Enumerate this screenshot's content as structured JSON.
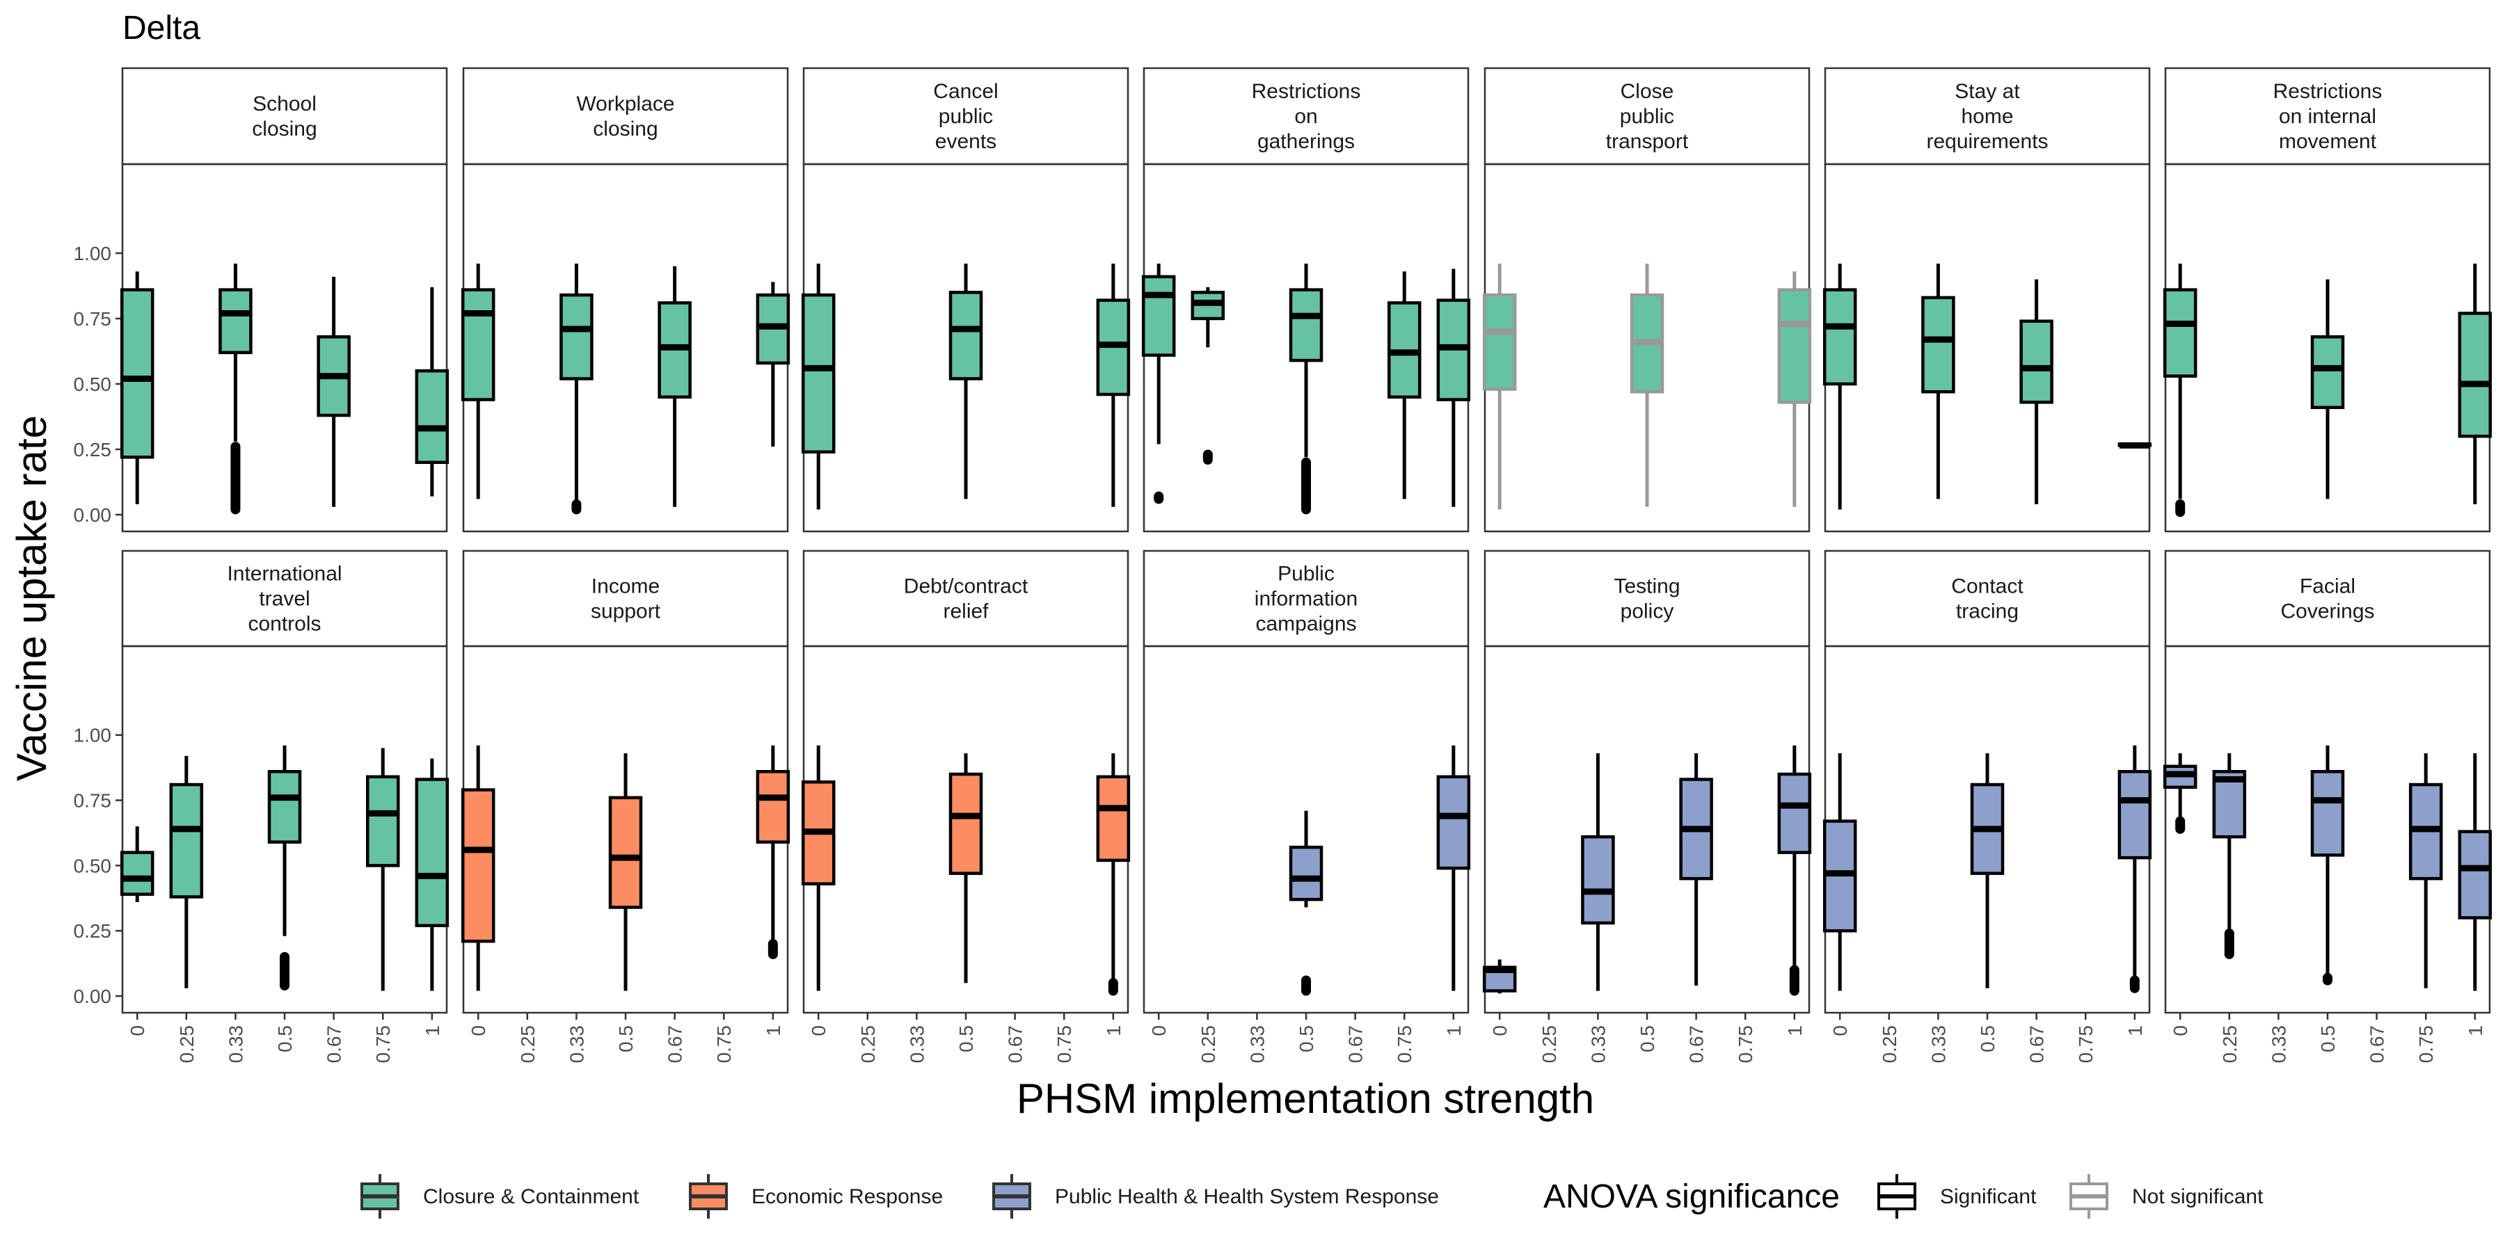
{
  "title": "Delta",
  "chart_data": {
    "type": "box",
    "xlabel": "PHSM implementation strength",
    "ylabel": "Vaccine uptake rate",
    "x_categories": [
      "0",
      "0.25",
      "0.33",
      "0.5",
      "0.67",
      "0.75",
      "1"
    ],
    "y_ticks": [
      "0.00",
      "0.25",
      "0.50",
      "0.75",
      "1.00"
    ],
    "ylim": [
      0,
      1
    ],
    "layout": {
      "rows": 2,
      "cols": 7
    },
    "groups": [
      {
        "key": "cc",
        "name": "Closure & Containment",
        "color": "#66c2a5"
      },
      {
        "key": "er",
        "name": "Economic Response",
        "color": "#fc8d62"
      },
      {
        "key": "ph",
        "name": "Public Health & Health System Response",
        "color": "#8da0cb"
      }
    ],
    "significance": {
      "title": "ANOVA significance",
      "levels": [
        {
          "key": "sig",
          "name": "Significant",
          "color": "#000000"
        },
        {
          "key": "ns",
          "name": "Not significant",
          "color": "#999999"
        }
      ]
    },
    "panels": [
      {
        "title": [
          "School",
          "closing"
        ],
        "group": "cc",
        "significance": "sig",
        "boxes": [
          {
            "x": "0",
            "min": 0.04,
            "q1": 0.22,
            "median": 0.52,
            "q3": 0.86,
            "max": 0.93
          },
          {
            "x": "0.33",
            "min": 0.28,
            "q1": 0.62,
            "median": 0.77,
            "q3": 0.86,
            "max": 0.96,
            "outliers_range": [
              0.02,
              0.26
            ]
          },
          {
            "x": "0.67",
            "min": 0.03,
            "q1": 0.38,
            "median": 0.53,
            "q3": 0.68,
            "max": 0.91
          },
          {
            "x": "1",
            "min": 0.07,
            "q1": 0.2,
            "median": 0.33,
            "q3": 0.55,
            "max": 0.87
          }
        ]
      },
      {
        "title": [
          "Workplace",
          "closing"
        ],
        "group": "cc",
        "significance": "sig",
        "boxes": [
          {
            "x": "0",
            "min": 0.06,
            "q1": 0.44,
            "median": 0.77,
            "q3": 0.86,
            "max": 0.96
          },
          {
            "x": "0.33",
            "min": 0.05,
            "q1": 0.52,
            "median": 0.71,
            "q3": 0.84,
            "max": 0.96,
            "outliers_range": [
              0.02,
              0.04
            ]
          },
          {
            "x": "0.67",
            "min": 0.03,
            "q1": 0.45,
            "median": 0.64,
            "q3": 0.81,
            "max": 0.95
          },
          {
            "x": "1",
            "min": 0.26,
            "q1": 0.58,
            "median": 0.72,
            "q3": 0.84,
            "max": 0.89
          }
        ]
      },
      {
        "title": [
          "Cancel",
          "public",
          "events"
        ],
        "group": "cc",
        "significance": "sig",
        "boxes": [
          {
            "x": "0",
            "min": 0.02,
            "q1": 0.24,
            "median": 0.56,
            "q3": 0.84,
            "max": 0.96
          },
          {
            "x": "0.5",
            "min": 0.06,
            "q1": 0.52,
            "median": 0.71,
            "q3": 0.85,
            "max": 0.96
          },
          {
            "x": "1",
            "min": 0.03,
            "q1": 0.46,
            "median": 0.65,
            "q3": 0.82,
            "max": 0.96
          }
        ]
      },
      {
        "title": [
          "Restrictions",
          "on",
          "gatherings"
        ],
        "group": "cc",
        "significance": "sig",
        "boxes": [
          {
            "x": "0",
            "min": 0.27,
            "q1": 0.61,
            "median": 0.84,
            "q3": 0.91,
            "max": 0.96,
            "outliers_range": [
              0.06,
              0.07
            ]
          },
          {
            "x": "0.25",
            "min": 0.64,
            "q1": 0.75,
            "median": 0.81,
            "q3": 0.85,
            "max": 0.87,
            "outliers_range": [
              0.21,
              0.23
            ]
          },
          {
            "x": "0.5",
            "min": 0.22,
            "q1": 0.59,
            "median": 0.76,
            "q3": 0.86,
            "max": 0.96,
            "outliers_range": [
              0.02,
              0.2
            ]
          },
          {
            "x": "0.75",
            "min": 0.06,
            "q1": 0.45,
            "median": 0.62,
            "q3": 0.81,
            "max": 0.93
          },
          {
            "x": "1",
            "min": 0.03,
            "q1": 0.44,
            "median": 0.64,
            "q3": 0.82,
            "max": 0.94
          }
        ]
      },
      {
        "title": [
          "Close",
          "public",
          "transport"
        ],
        "group": "cc",
        "significance": "ns",
        "boxes": [
          {
            "x": "0",
            "min": 0.02,
            "q1": 0.48,
            "median": 0.7,
            "q3": 0.84,
            "max": 0.96
          },
          {
            "x": "0.5",
            "min": 0.03,
            "q1": 0.47,
            "median": 0.66,
            "q3": 0.84,
            "max": 0.96
          },
          {
            "x": "1",
            "min": 0.03,
            "q1": 0.43,
            "median": 0.73,
            "q3": 0.86,
            "max": 0.93
          }
        ]
      },
      {
        "title": [
          "Stay at",
          "home",
          "requirements"
        ],
        "group": "cc",
        "significance": "sig",
        "boxes": [
          {
            "x": "0",
            "min": 0.02,
            "q1": 0.5,
            "median": 0.72,
            "q3": 0.86,
            "max": 0.96
          },
          {
            "x": "0.33",
            "min": 0.06,
            "q1": 0.47,
            "median": 0.67,
            "q3": 0.83,
            "max": 0.96
          },
          {
            "x": "0.67",
            "min": 0.04,
            "q1": 0.43,
            "median": 0.56,
            "q3": 0.74,
            "max": 0.9
          },
          {
            "x": "1",
            "min": 0.265,
            "q1": 0.265,
            "median": 0.265,
            "q3": 0.27,
            "max": 0.27
          }
        ]
      },
      {
        "title": [
          "Restrictions",
          "on internal",
          "movement"
        ],
        "group": "cc",
        "significance": "sig",
        "boxes": [
          {
            "x": "0",
            "min": 0.06,
            "q1": 0.53,
            "median": 0.73,
            "q3": 0.86,
            "max": 0.96,
            "outliers_range": [
              0.01,
              0.04
            ]
          },
          {
            "x": "0.5",
            "min": 0.06,
            "q1": 0.41,
            "median": 0.56,
            "q3": 0.68,
            "max": 0.9
          },
          {
            "x": "1",
            "min": 0.04,
            "q1": 0.3,
            "median": 0.5,
            "q3": 0.77,
            "max": 0.96
          }
        ]
      },
      {
        "title": [
          "International",
          "travel",
          "controls"
        ],
        "group": "cc",
        "significance": "sig",
        "boxes": [
          {
            "x": "0",
            "min": 0.36,
            "q1": 0.39,
            "median": 0.45,
            "q3": 0.55,
            "max": 0.65
          },
          {
            "x": "0.25",
            "min": 0.03,
            "q1": 0.38,
            "median": 0.64,
            "q3": 0.81,
            "max": 0.92
          },
          {
            "x": "0.5",
            "min": 0.23,
            "q1": 0.59,
            "median": 0.76,
            "q3": 0.86,
            "max": 0.96,
            "outliers_range": [
              0.04,
              0.15
            ]
          },
          {
            "x": "0.75",
            "min": 0.02,
            "q1": 0.5,
            "median": 0.7,
            "q3": 0.84,
            "max": 0.95
          },
          {
            "x": "1",
            "min": 0.02,
            "q1": 0.27,
            "median": 0.46,
            "q3": 0.83,
            "max": 0.91
          }
        ]
      },
      {
        "title": [
          "Income",
          "support"
        ],
        "group": "er",
        "significance": "sig",
        "boxes": [
          {
            "x": "0",
            "min": 0.02,
            "q1": 0.21,
            "median": 0.56,
            "q3": 0.79,
            "max": 0.96
          },
          {
            "x": "0.5",
            "min": 0.02,
            "q1": 0.34,
            "median": 0.53,
            "q3": 0.76,
            "max": 0.93
          },
          {
            "x": "1",
            "min": 0.21,
            "q1": 0.59,
            "median": 0.76,
            "q3": 0.86,
            "max": 0.96,
            "outliers_range": [
              0.16,
              0.2
            ]
          }
        ]
      },
      {
        "title": [
          "Debt/contract",
          "relief"
        ],
        "group": "er",
        "significance": "sig",
        "boxes": [
          {
            "x": "0",
            "min": 0.02,
            "q1": 0.43,
            "median": 0.63,
            "q3": 0.82,
            "max": 0.96
          },
          {
            "x": "0.5",
            "min": 0.05,
            "q1": 0.47,
            "median": 0.69,
            "q3": 0.85,
            "max": 0.93
          },
          {
            "x": "1",
            "min": 0.06,
            "q1": 0.52,
            "median": 0.72,
            "q3": 0.84,
            "max": 0.93,
            "outliers_range": [
              0.02,
              0.05
            ]
          }
        ]
      },
      {
        "title": [
          "Public",
          "information",
          "campaigns"
        ],
        "group": "ph",
        "significance": "sig",
        "boxes": [
          {
            "x": "0.5",
            "min": 0.34,
            "q1": 0.37,
            "median": 0.45,
            "q3": 0.57,
            "max": 0.71,
            "outliers_range": [
              0.02,
              0.06
            ]
          },
          {
            "x": "1",
            "min": 0.02,
            "q1": 0.49,
            "median": 0.69,
            "q3": 0.84,
            "max": 0.96
          }
        ]
      },
      {
        "title": [
          "Testing",
          "policy"
        ],
        "group": "ph",
        "significance": "sig",
        "boxes": [
          {
            "x": "0",
            "min": 0.01,
            "q1": 0.02,
            "median": 0.1,
            "q3": 0.11,
            "max": 0.14
          },
          {
            "x": "0.33",
            "min": 0.02,
            "q1": 0.28,
            "median": 0.4,
            "q3": 0.61,
            "max": 0.93
          },
          {
            "x": "0.67",
            "min": 0.04,
            "q1": 0.45,
            "median": 0.64,
            "q3": 0.83,
            "max": 0.93
          },
          {
            "x": "1",
            "min": 0.1,
            "q1": 0.55,
            "median": 0.73,
            "q3": 0.85,
            "max": 0.96,
            "outliers_range": [
              0.02,
              0.1
            ]
          }
        ]
      },
      {
        "title": [
          "Contact",
          "tracing"
        ],
        "group": "ph",
        "significance": "sig",
        "boxes": [
          {
            "x": "0",
            "min": 0.02,
            "q1": 0.25,
            "median": 0.47,
            "q3": 0.67,
            "max": 0.93
          },
          {
            "x": "0.5",
            "min": 0.03,
            "q1": 0.47,
            "median": 0.64,
            "q3": 0.81,
            "max": 0.93
          },
          {
            "x": "1",
            "min": 0.07,
            "q1": 0.53,
            "median": 0.75,
            "q3": 0.86,
            "max": 0.96,
            "outliers_range": [
              0.03,
              0.06
            ]
          }
        ]
      },
      {
        "title": [
          "Facial",
          "Coverings"
        ],
        "group": "ph",
        "significance": "sig",
        "boxes": [
          {
            "x": "0",
            "min": 0.68,
            "q1": 0.8,
            "median": 0.85,
            "q3": 0.88,
            "max": 0.93,
            "outliers_range": [
              0.64,
              0.67
            ]
          },
          {
            "x": "0.25",
            "min": 0.25,
            "q1": 0.61,
            "median": 0.83,
            "q3": 0.86,
            "max": 0.93,
            "outliers_range": [
              0.16,
              0.24
            ]
          },
          {
            "x": "0.5",
            "min": 0.08,
            "q1": 0.54,
            "median": 0.75,
            "q3": 0.86,
            "max": 0.96,
            "outliers_range": [
              0.06,
              0.07
            ]
          },
          {
            "x": "0.75",
            "min": 0.03,
            "q1": 0.45,
            "median": 0.64,
            "q3": 0.81,
            "max": 0.93
          },
          {
            "x": "1",
            "min": 0.02,
            "q1": 0.3,
            "median": 0.49,
            "q3": 0.63,
            "max": 0.93
          }
        ]
      }
    ]
  }
}
